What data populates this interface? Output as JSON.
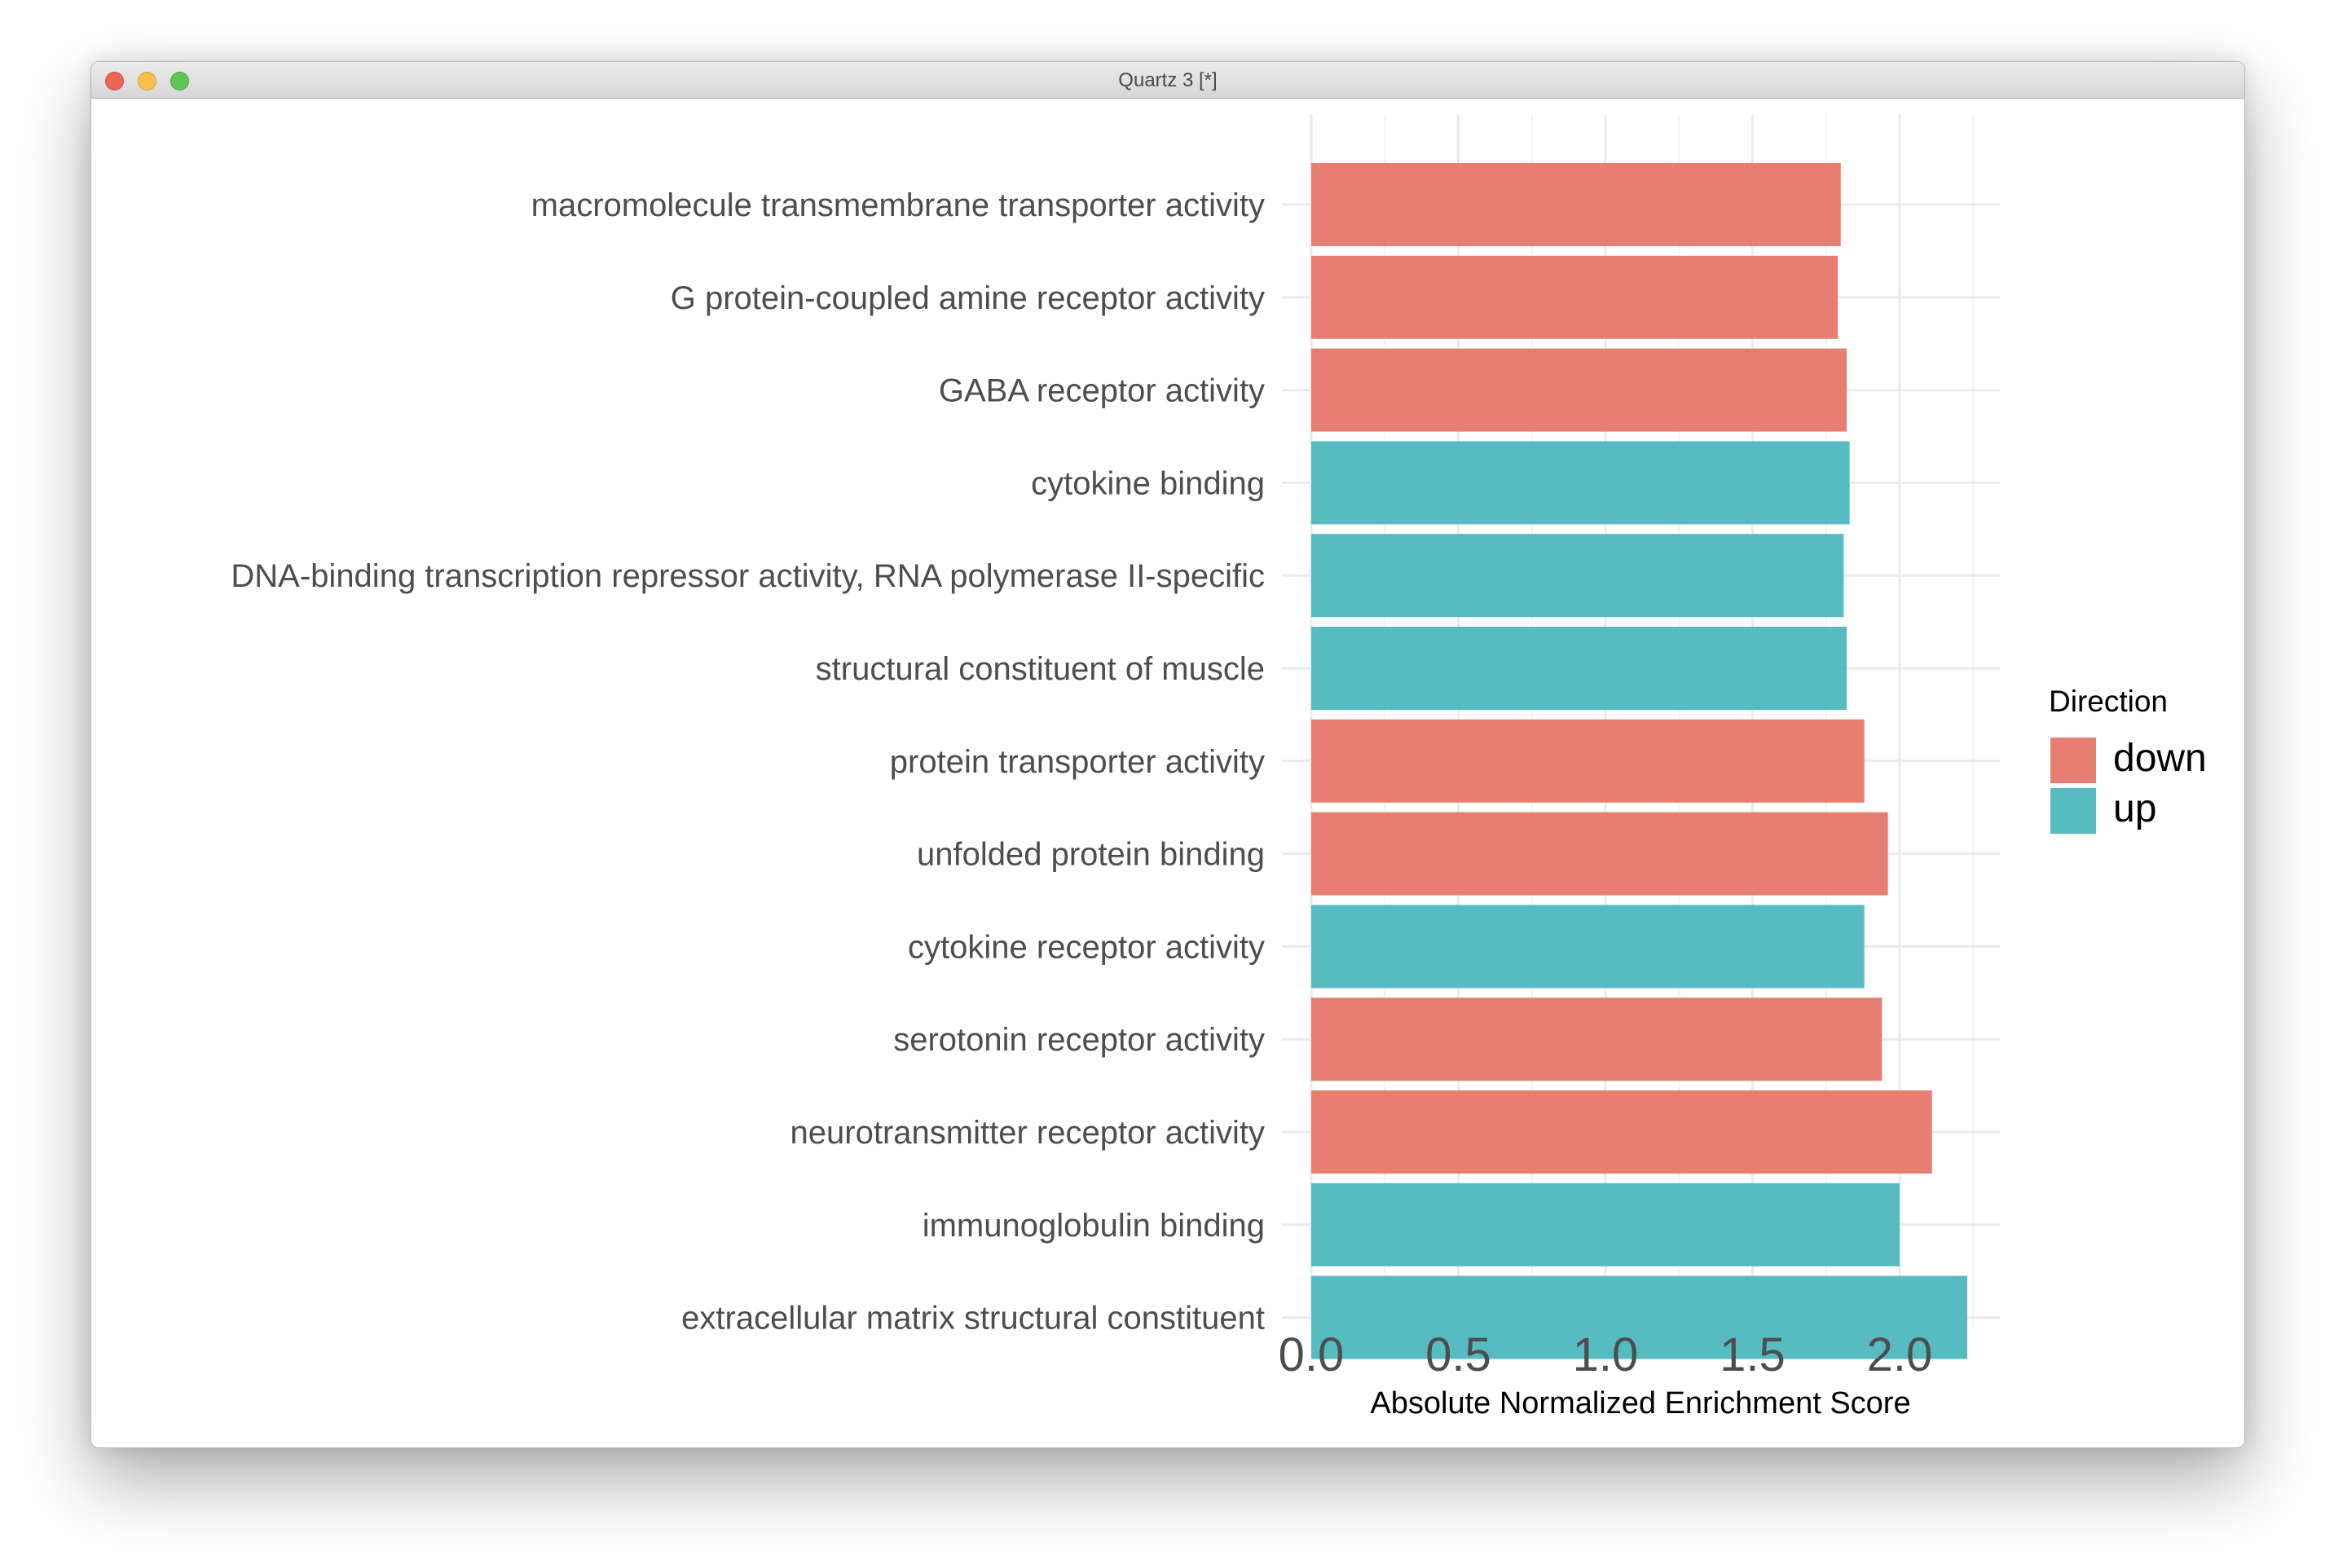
{
  "window": {
    "title": "Quartz 3 [*]"
  },
  "chart_data": {
    "type": "bar",
    "orientation": "horizontal",
    "title": "",
    "xlabel": "Absolute Normalized Enrichment Score",
    "ylabel": "",
    "xlim": [
      0,
      2.33
    ],
    "xticks": [
      "0.0",
      "0.5",
      "1.0",
      "1.5",
      "2.0"
    ],
    "grid": true,
    "legend": {
      "title": "Direction",
      "position": "right",
      "entries": [
        {
          "label": "down",
          "color": "#E87E72"
        },
        {
          "label": "up",
          "color": "#56BCC2"
        }
      ]
    },
    "categories": [
      "macromolecule transmembrane transporter activity",
      "G protein-coupled amine receptor activity",
      "GABA receptor activity",
      "cytokine binding",
      "DNA-binding transcription repressor activity, RNA polymerase II-specific",
      "structural constituent of muscle",
      "protein transporter activity",
      "unfolded protein binding",
      "cytokine receptor activity",
      "serotonin receptor activity",
      "neurotransmitter receptor activity",
      "immunoglobulin binding",
      "extracellular matrix structural constituent"
    ],
    "values": [
      1.8,
      1.79,
      1.82,
      1.83,
      1.81,
      1.82,
      1.88,
      1.96,
      1.88,
      1.94,
      2.11,
      2.0,
      2.23
    ],
    "direction": [
      "down",
      "down",
      "down",
      "up",
      "up",
      "up",
      "down",
      "down",
      "up",
      "down",
      "down",
      "up",
      "up"
    ]
  }
}
